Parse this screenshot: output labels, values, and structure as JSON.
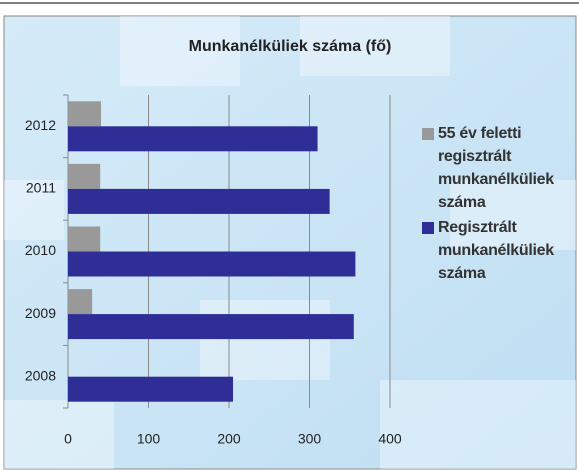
{
  "chart_data": {
    "type": "barh",
    "title": "Munkanélküliek száma (fő)",
    "categories": [
      "2008",
      "2009",
      "2010",
      "2011",
      "2012"
    ],
    "series": [
      {
        "name": "55 év feletti regisztrált munkanélküliek száma",
        "color": "#999999",
        "values": [
          null,
          30,
          40,
          40,
          41
        ]
      },
      {
        "name": "Regisztrált munkanélküliek száma",
        "color": "#2e2e96",
        "values": [
          205,
          355,
          357,
          325,
          310
        ]
      }
    ],
    "xlim": [
      0,
      400
    ],
    "xticks": [
      0,
      100,
      200,
      300,
      400
    ],
    "grid": true,
    "legend": "right"
  }
}
